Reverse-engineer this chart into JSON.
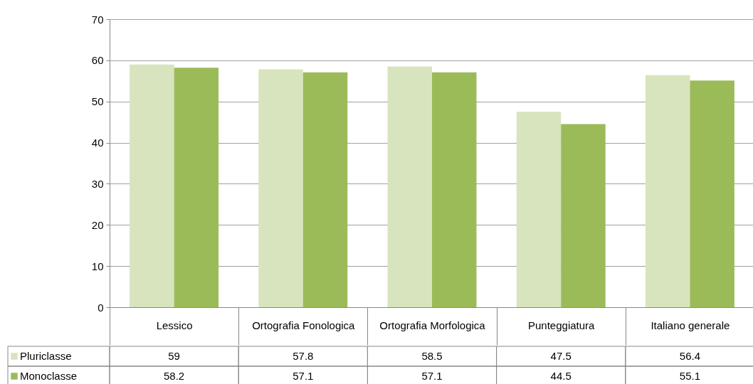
{
  "chart_data": {
    "type": "bar",
    "categories": [
      "Lessico",
      "Ortografia Fonologica",
      "Ortografia Morfologica",
      "Punteggiatura",
      "Italiano generale"
    ],
    "series": [
      {
        "name": "Pluriclasse",
        "color": "#d7e4bd",
        "values": [
          59,
          57.8,
          58.5,
          47.5,
          56.4
        ]
      },
      {
        "name": "Monoclasse",
        "color": "#9bbb59",
        "values": [
          58.2,
          57.1,
          57.1,
          44.5,
          55.1
        ]
      }
    ],
    "ylim": [
      0,
      70
    ],
    "yticks": [
      0,
      10,
      20,
      30,
      40,
      50,
      60,
      70
    ],
    "grid": "y",
    "legend": "bottom left",
    "data_labels": true
  }
}
